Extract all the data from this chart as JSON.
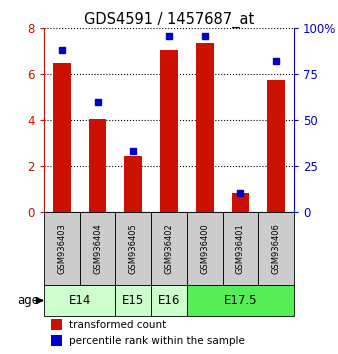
{
  "title": "GDS4591 / 1457687_at",
  "samples": [
    "GSM936403",
    "GSM936404",
    "GSM936405",
    "GSM936402",
    "GSM936400",
    "GSM936401",
    "GSM936406"
  ],
  "red_values": [
    6.5,
    4.05,
    2.45,
    7.05,
    7.35,
    0.8,
    5.75
  ],
  "blue_values": [
    88,
    60,
    33,
    96,
    96,
    10,
    82
  ],
  "age_groups": [
    {
      "label": "E14",
      "start": 0,
      "end": 2,
      "color": "#ccffcc"
    },
    {
      "label": "E15",
      "start": 2,
      "end": 3,
      "color": "#ccffcc"
    },
    {
      "label": "E16",
      "start": 3,
      "end": 4,
      "color": "#ccffcc"
    },
    {
      "label": "E17.5",
      "start": 4,
      "end": 7,
      "color": "#55ee55"
    }
  ],
  "ylim_left": [
    0,
    8
  ],
  "ylim_right": [
    0,
    100
  ],
  "yticks_left": [
    0,
    2,
    4,
    6,
    8
  ],
  "ytick_right_vals": [
    0,
    25,
    50,
    75,
    100
  ],
  "ytick_right_labels": [
    "0",
    "25",
    "50",
    "75",
    "100%"
  ],
  "bar_color": "#cc1100",
  "dot_color": "#0000cc",
  "left_axis_color": "#cc1100",
  "right_axis_color": "#0000cc",
  "legend_red_label": "transformed count",
  "legend_blue_label": "percentile rank within the sample",
  "bar_width": 0.5,
  "sample_box_color": "#cccccc",
  "age_label_text": "age"
}
